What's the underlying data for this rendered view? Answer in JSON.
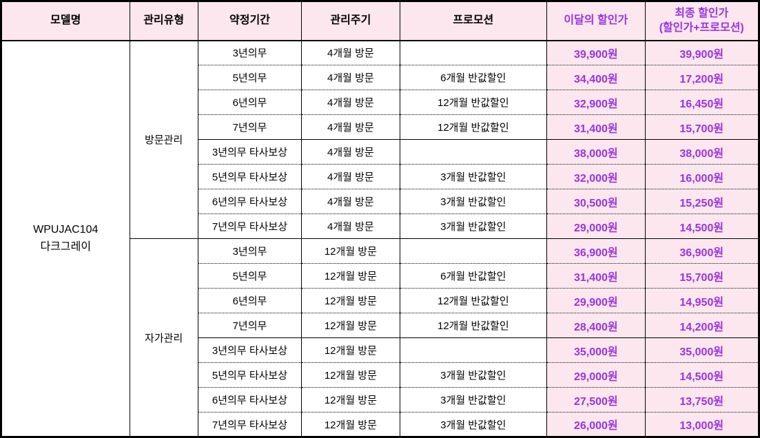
{
  "colors": {
    "header_bg": "#fce7ee",
    "price_bg": "#fce7ee",
    "accent_text": "#9933e0",
    "body_text": "#000000",
    "border": "#000000"
  },
  "table": {
    "headers": [
      {
        "key": "model",
        "label": "모델명",
        "accent": false
      },
      {
        "key": "management-type",
        "label": "관리유형",
        "accent": false
      },
      {
        "key": "contract-period",
        "label": "약정기간",
        "accent": false
      },
      {
        "key": "visit-cycle",
        "label": "관리주기",
        "accent": false
      },
      {
        "key": "promotion",
        "label": "프로모션",
        "accent": false
      },
      {
        "key": "monthly-discount",
        "label": "이달의 할인가",
        "accent": true
      },
      {
        "key": "final-discount",
        "label": "최종 할인가\n(할인가+프로모션)",
        "accent": true
      }
    ],
    "model": {
      "name": "WPUJAC104",
      "variant": "다크그레이"
    },
    "sections": [
      {
        "management_type": "방문관리",
        "subgroups": [
          {
            "rows": [
              {
                "contract": "3년의무",
                "cycle": "4개월 방문",
                "promotion": "",
                "monthly_price": "39,900원",
                "final_price": "39,900원"
              },
              {
                "contract": "5년의무",
                "cycle": "4개월 방문",
                "promotion": "6개월 반값할인",
                "monthly_price": "34,400원",
                "final_price": "17,200원"
              },
              {
                "contract": "6년의무",
                "cycle": "4개월 방문",
                "promotion": "12개월 반값할인",
                "monthly_price": "32,900원",
                "final_price": "16,450원"
              },
              {
                "contract": "7년의무",
                "cycle": "4개월 방문",
                "promotion": "12개월 반값할인",
                "monthly_price": "31,400원",
                "final_price": "15,700원"
              }
            ]
          },
          {
            "rows": [
              {
                "contract": "3년의무 타사보상",
                "cycle": "4개월 방문",
                "promotion": "",
                "monthly_price": "38,000원",
                "final_price": "38,000원"
              },
              {
                "contract": "5년의무 타사보상",
                "cycle": "4개월 방문",
                "promotion": "3개월 반값할인",
                "monthly_price": "32,000원",
                "final_price": "16,000원"
              },
              {
                "contract": "6년의무 타사보상",
                "cycle": "4개월 방문",
                "promotion": "3개월 반값할인",
                "monthly_price": "30,500원",
                "final_price": "15,250원"
              },
              {
                "contract": "7년의무 타사보상",
                "cycle": "4개월 방문",
                "promotion": "3개월 반값할인",
                "monthly_price": "29,000원",
                "final_price": "14,500원"
              }
            ]
          }
        ]
      },
      {
        "management_type": "자가관리",
        "subgroups": [
          {
            "rows": [
              {
                "contract": "3년의무",
                "cycle": "12개월 방문",
                "promotion": "",
                "monthly_price": "36,900원",
                "final_price": "36,900원"
              },
              {
                "contract": "5년의무",
                "cycle": "12개월 방문",
                "promotion": "6개월 반값할인",
                "monthly_price": "31,400원",
                "final_price": "15,700원"
              },
              {
                "contract": "6년의무",
                "cycle": "12개월 방문",
                "promotion": "12개월 반값할인",
                "monthly_price": "29,900원",
                "final_price": "14,950원"
              },
              {
                "contract": "7년의무",
                "cycle": "12개월 방문",
                "promotion": "12개월 반값할인",
                "monthly_price": "28,400원",
                "final_price": "14,200원"
              }
            ]
          },
          {
            "rows": [
              {
                "contract": "3년의무 타사보상",
                "cycle": "12개월 방문",
                "promotion": "",
                "monthly_price": "35,000원",
                "final_price": "35,000원"
              },
              {
                "contract": "5년의무 타사보상",
                "cycle": "12개월 방문",
                "promotion": "3개월 반값할인",
                "monthly_price": "29,000원",
                "final_price": "14,500원"
              },
              {
                "contract": "6년의무 타사보상",
                "cycle": "12개월 방문",
                "promotion": "3개월 반값할인",
                "monthly_price": "27,500원",
                "final_price": "13,750원"
              },
              {
                "contract": "7년의무 타사보상",
                "cycle": "12개월 방문",
                "promotion": "3개월 반값할인",
                "monthly_price": "26,000원",
                "final_price": "13,000원"
              }
            ]
          }
        ]
      }
    ]
  }
}
